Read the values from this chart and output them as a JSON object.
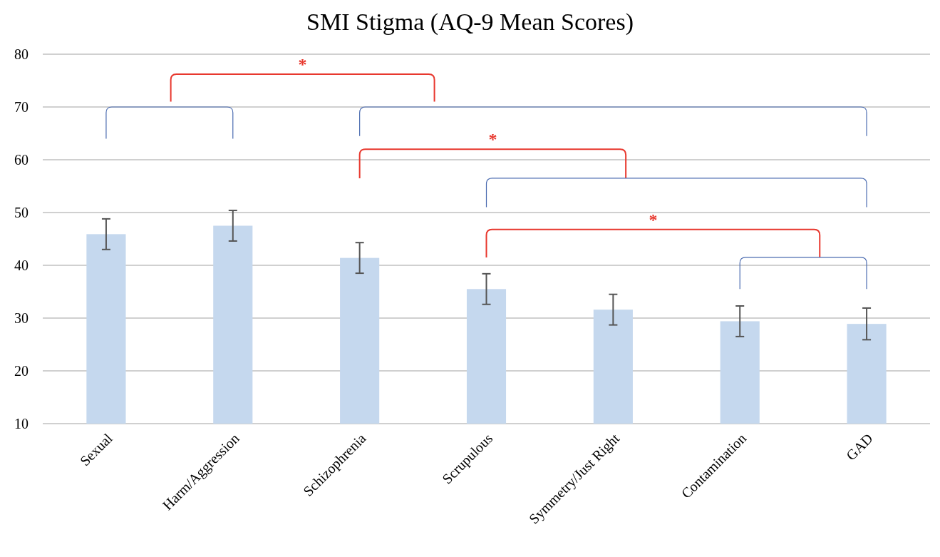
{
  "chart_data": {
    "type": "bar",
    "title": "SMI Stigma (AQ-9 Mean Scores)",
    "categories": [
      "Sexual",
      "Harm/Aggression",
      "Schizophrenia",
      "Scrupulous",
      "Symmetry/Just Right",
      "Contamination",
      "GAD"
    ],
    "values": [
      45.9,
      47.5,
      41.4,
      35.5,
      31.6,
      29.4,
      28.9
    ],
    "errors": [
      2.9,
      2.9,
      2.9,
      2.9,
      2.9,
      2.9,
      3.0
    ],
    "color": "#c5d8ee",
    "ylim": [
      10,
      80
    ],
    "yticks": [
      10,
      20,
      30,
      40,
      50,
      60,
      70,
      80
    ],
    "grid": "y",
    "annotations": [
      "*",
      "*",
      "*"
    ]
  }
}
